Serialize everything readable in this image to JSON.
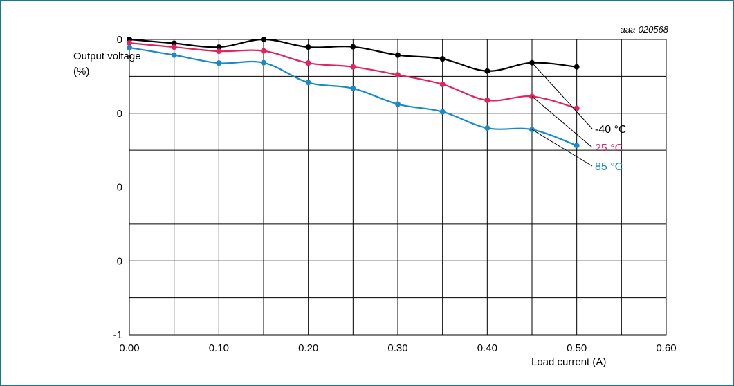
{
  "chart_data": {
    "type": "line",
    "code": "aaa-020568",
    "xlabel": "Load current (A)",
    "ylabel": [
      "Output voltage",
      "(%)"
    ],
    "xlim": [
      0,
      0.6
    ],
    "ylim": [
      -1,
      0
    ],
    "grid": true,
    "x_ticks": [
      "0.00",
      "0.10",
      "0.20",
      "0.30",
      "0.40",
      "0.50",
      "0.60"
    ],
    "y_ticks": [
      "0",
      "0",
      "0",
      "0",
      "-1"
    ],
    "x": [
      0.0,
      0.05,
      0.1,
      0.15,
      0.2,
      0.25,
      0.3,
      0.35,
      0.4,
      0.45,
      0.5
    ],
    "series": [
      {
        "name": "-40 °C",
        "color": "#000000",
        "values": [
          0.0,
          -0.013,
          -0.026,
          0.0,
          -0.026,
          -0.025,
          -0.053,
          -0.066,
          -0.107,
          -0.079,
          -0.093
        ],
        "label_anchor_index": 9
      },
      {
        "name": "25 °C",
        "color": "#e0245e",
        "values": [
          -0.012,
          -0.026,
          -0.04,
          -0.039,
          -0.08,
          -0.093,
          -0.12,
          -0.152,
          -0.206,
          -0.193,
          -0.233
        ],
        "label_anchor_index": 9
      },
      {
        "name": "85 °C",
        "color": "#1a8ac6",
        "values": [
          -0.028,
          -0.053,
          -0.08,
          -0.079,
          -0.146,
          -0.166,
          -0.219,
          -0.245,
          -0.3,
          -0.305,
          -0.359
        ],
        "label_anchor_index": 9
      }
    ]
  }
}
